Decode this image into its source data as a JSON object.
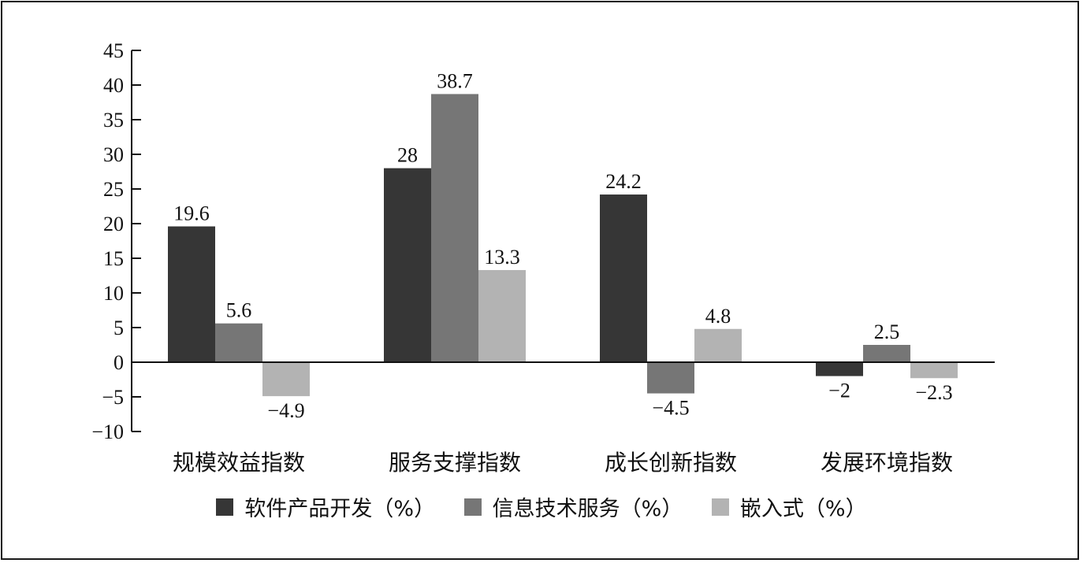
{
  "chart_data": {
    "type": "bar",
    "categories": [
      "规模效益指数",
      "服务支撑指数",
      "成长创新指数",
      "发展环境指数"
    ],
    "series": [
      {
        "name": "软件产品开发（%）",
        "values": [
          19.6,
          28,
          24.2,
          -2
        ],
        "color": "#363636"
      },
      {
        "name": "信息技术服务（%）",
        "values": [
          5.6,
          38.7,
          -4.5,
          2.5
        ],
        "color": "#767676"
      },
      {
        "name": "嵌入式（%）",
        "values": [
          -4.9,
          13.3,
          4.8,
          -2.3
        ],
        "color": "#b3b3b3"
      }
    ],
    "data_labels": [
      [
        "19.6",
        "28",
        "24.2",
        "−2"
      ],
      [
        "5.6",
        "38.7",
        "−4.5",
        "2.5"
      ],
      [
        "−4.9",
        "13.3",
        "4.8",
        "−2.3"
      ]
    ],
    "y_ticks": [
      -10,
      -5,
      0,
      5,
      10,
      15,
      20,
      25,
      30,
      35,
      40,
      45
    ],
    "y_tick_labels": [
      "−10",
      "−5",
      "0",
      "5",
      "10",
      "15",
      "20",
      "25",
      "30",
      "35",
      "40",
      "45"
    ],
    "ylim": [
      -10,
      45
    ],
    "title": "",
    "xlabel": "",
    "ylabel": "",
    "grid": false,
    "legend_position": "bottom"
  }
}
